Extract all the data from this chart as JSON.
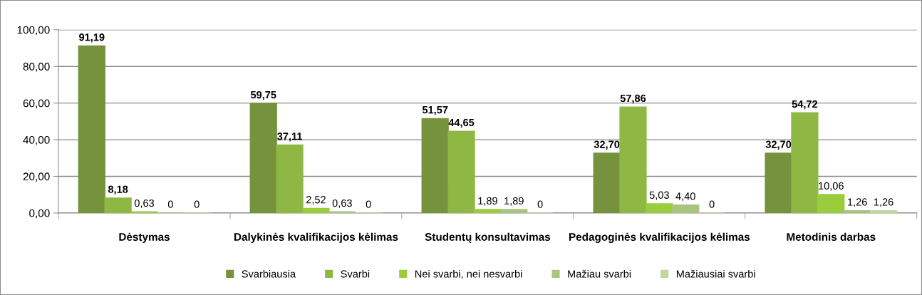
{
  "chart_data": {
    "type": "bar",
    "categories": [
      "Dėstymas",
      "Dalykinės kvalifikacijos kėlimas",
      "Studentų konsultavimas",
      "Pedagoginės kvalifikacijos kėlimas",
      "Metodinis darbas"
    ],
    "series": [
      {
        "name": "Svarbiausia",
        "color": "#76923c",
        "values": [
          91.19,
          59.75,
          51.57,
          32.7,
          32.7
        ],
        "value_labels": [
          "91,19",
          "59,75",
          "51,57",
          "32,70",
          "32,70"
        ]
      },
      {
        "name": "Svarbi",
        "color": "#8fb744",
        "values": [
          8.18,
          37.11,
          44.65,
          57.86,
          54.72
        ],
        "value_labels": [
          "8,18",
          "37,11",
          "44,65",
          "57,86",
          "54,72"
        ]
      },
      {
        "name": "Nei svarbi, nei nesvarbi",
        "color": "#9acd3c",
        "values": [
          0.63,
          2.52,
          1.89,
          5.03,
          10.06
        ],
        "value_labels": [
          "0,63",
          "2,52",
          "1,89",
          "5,03",
          "10,06"
        ]
      },
      {
        "name": "Mažiau svarbi",
        "color": "#a9c47f",
        "values": [
          0,
          0.63,
          1.89,
          4.4,
          1.26
        ],
        "value_labels": [
          "0",
          "0,63",
          "1,89",
          "4,40",
          "1,26"
        ]
      },
      {
        "name": "Mažiausiai svarbi",
        "color": "#c3d69b",
        "values": [
          0,
          0,
          0,
          0,
          1.26
        ],
        "value_labels": [
          "0",
          "0",
          "0",
          "0",
          "1,26"
        ]
      }
    ],
    "ylim": [
      0,
      100
    ],
    "yticks": [
      {
        "value": 0,
        "label": "0,00"
      },
      {
        "value": 20,
        "label": "20,00"
      },
      {
        "value": 40,
        "label": "40,00"
      },
      {
        "value": 60,
        "label": "60,00"
      },
      {
        "value": 80,
        "label": "80,00"
      },
      {
        "value": 100,
        "label": "100,00"
      }
    ],
    "grid": "y",
    "legend": "bottom"
  }
}
